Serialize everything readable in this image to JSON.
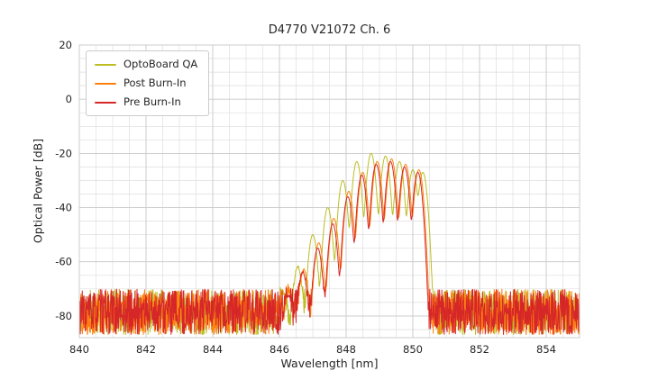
{
  "figure": {
    "title": "D4770 V21072 Ch. 6"
  },
  "chart_data": {
    "type": "line",
    "title": "D4770 V21072 Ch. 6",
    "xlabel": "Wavelength [nm]",
    "ylabel": "Optical Power [dB]",
    "xlim": [
      840,
      855
    ],
    "ylim": [
      -88,
      20
    ],
    "xticks": [
      840,
      842,
      844,
      846,
      848,
      850,
      852,
      854
    ],
    "yticks": [
      20,
      0,
      -20,
      -40,
      -60,
      -80
    ],
    "grid": true,
    "minor_grid_x_step": 0.5,
    "minor_grid_y_step": 5,
    "legend_position": "upper-left",
    "noise_floor_db": {
      "min": -87,
      "max": -70
    },
    "description": "Optical spectra of VCSEL channel before/after burn-in: noise floor near -80 dB across 840-855 nm with multimode emission envelope between ~846.3 and ~850.5 nm peaking near -20 dB around 848.8-849.4 nm.",
    "series": [
      {
        "name": "OptoBoard QA",
        "color": "#bcbd22",
        "seed": 11,
        "mode_width_nm": 0.09,
        "modes": [
          [
            846.1,
            -72
          ],
          [
            846.55,
            -62
          ],
          [
            847.0,
            -50
          ],
          [
            847.45,
            -40
          ],
          [
            847.9,
            -30
          ],
          [
            848.32,
            -23
          ],
          [
            848.75,
            -20
          ],
          [
            849.18,
            -21
          ],
          [
            849.6,
            -23
          ],
          [
            850.0,
            -26
          ],
          [
            850.3,
            -27
          ]
        ]
      },
      {
        "name": "Post Burn-In",
        "color": "#ff7f0e",
        "seed": 22,
        "mode_width_nm": 0.09,
        "modes": [
          [
            846.28,
            -72
          ],
          [
            846.73,
            -63
          ],
          [
            847.18,
            -53
          ],
          [
            847.63,
            -44
          ],
          [
            848.08,
            -34
          ],
          [
            848.5,
            -27
          ],
          [
            848.93,
            -23
          ],
          [
            849.36,
            -22
          ],
          [
            849.78,
            -24
          ],
          [
            850.18,
            -26
          ]
        ]
      },
      {
        "name": "Pre Burn-In",
        "color": "#d62728",
        "seed": 33,
        "mode_width_nm": 0.09,
        "modes": [
          [
            846.25,
            -73
          ],
          [
            846.7,
            -64
          ],
          [
            847.15,
            -55
          ],
          [
            847.6,
            -46
          ],
          [
            848.05,
            -36
          ],
          [
            848.47,
            -28
          ],
          [
            848.9,
            -24
          ],
          [
            849.33,
            -23
          ],
          [
            849.75,
            -25
          ],
          [
            850.15,
            -27
          ]
        ]
      }
    ]
  }
}
